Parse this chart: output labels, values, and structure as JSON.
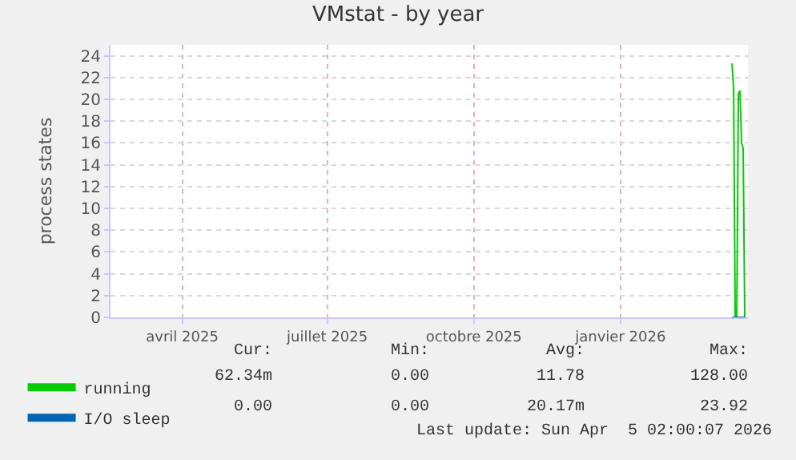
{
  "chart_data": {
    "type": "line",
    "title": "VMstat - by year",
    "ylabel": "process states",
    "x": [
      "2026-03-26",
      "2026-03-27",
      "2026-03-28",
      "2026-03-29",
      "2026-03-30",
      "2026-03-31",
      "2026-04-01",
      "2026-04-02",
      "2026-04-03"
    ],
    "series": [
      {
        "name": "running",
        "color": "#00cc00",
        "values": [
          23.3,
          21.0,
          0,
          0,
          20.5,
          20.8,
          16,
          15.5,
          0
        ]
      },
      {
        "name": "I/O sleep",
        "color": "#0066b3",
        "values": [
          0,
          0,
          0,
          0,
          0,
          0,
          0,
          0,
          0
        ]
      }
    ],
    "xlim": [
      "2025-03-01",
      "2026-04-05"
    ],
    "xticks": [
      {
        "value": "2025-04-15",
        "label": "avril 2025"
      },
      {
        "value": "2025-07-15",
        "label": "juillet 2025"
      },
      {
        "value": "2025-10-15",
        "label": "octobre 2025"
      },
      {
        "value": "2026-01-15",
        "label": "janvier 2026"
      }
    ],
    "ylim": [
      0,
      25
    ],
    "yticks": [
      0,
      2,
      4,
      6,
      8,
      10,
      12,
      14,
      16,
      18,
      20,
      22,
      24
    ],
    "grid": true,
    "legend": "bottom",
    "marker": "none",
    "line_style": "solid",
    "annotations": [
      "Cur:",
      "Min:",
      "Avg:",
      "Max:",
      "62.34m",
      "0.00",
      "11.78",
      "128.00",
      "0.00",
      "0.00",
      "20.17m",
      "23.92",
      "Last update: Sun Apr  5 02:00:07 2026"
    ]
  }
}
